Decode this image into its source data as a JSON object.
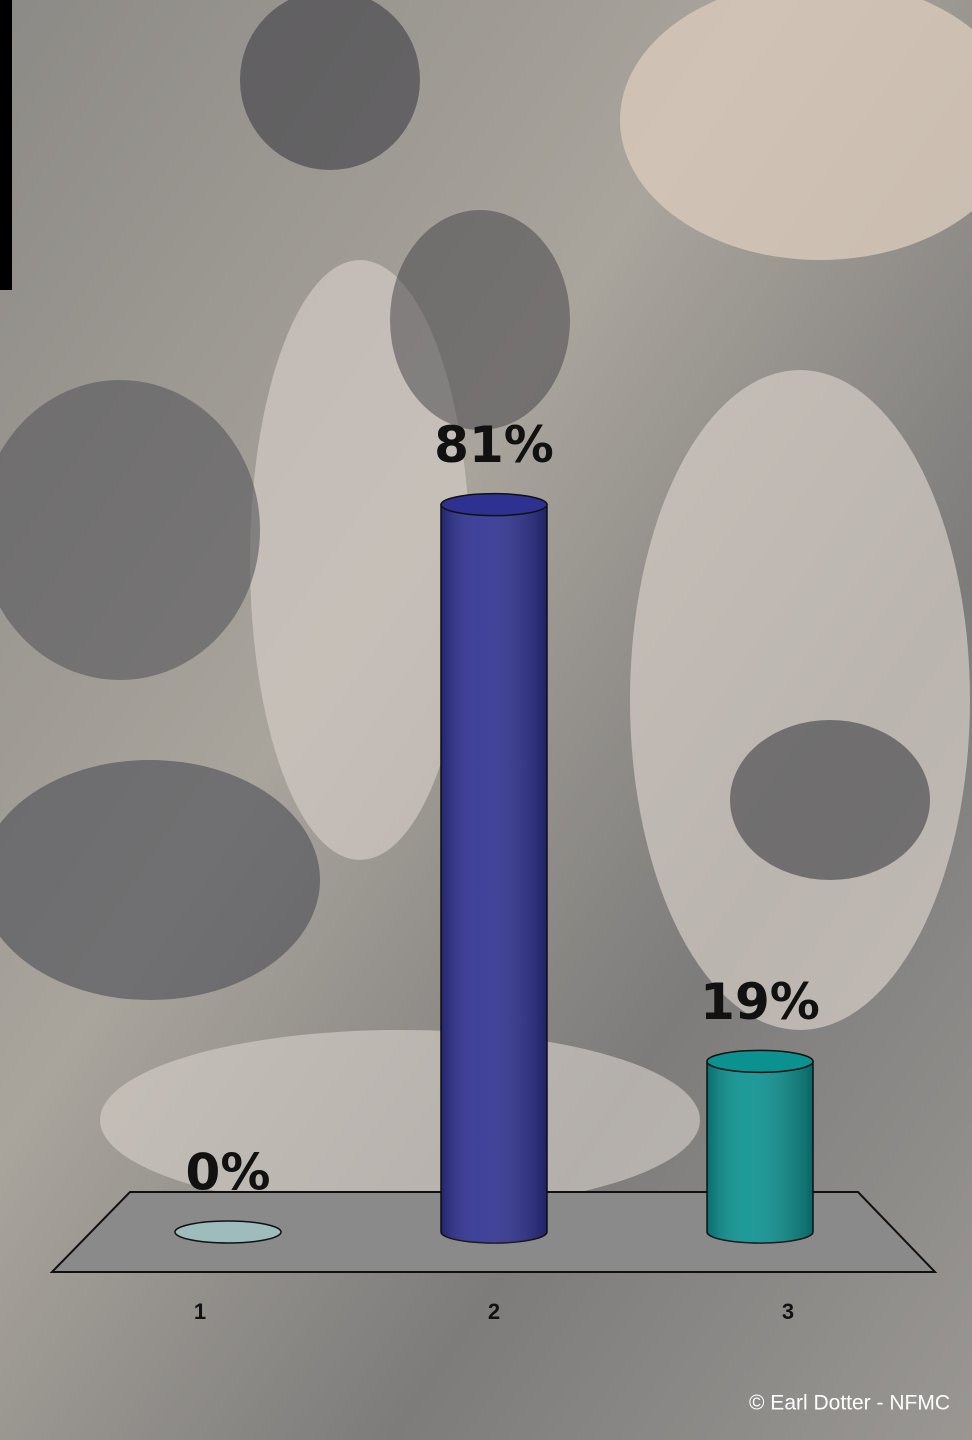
{
  "chart_data": {
    "type": "bar",
    "categories": [
      "1",
      "2",
      "3"
    ],
    "values": [
      0,
      81,
      19
    ],
    "value_labels": [
      "0%",
      "81%",
      "19%"
    ],
    "colors": [
      "#9fbcbc",
      "#2e3192",
      "#0a9190"
    ],
    "annotation": "© Earl Dotter - NFMC"
  }
}
